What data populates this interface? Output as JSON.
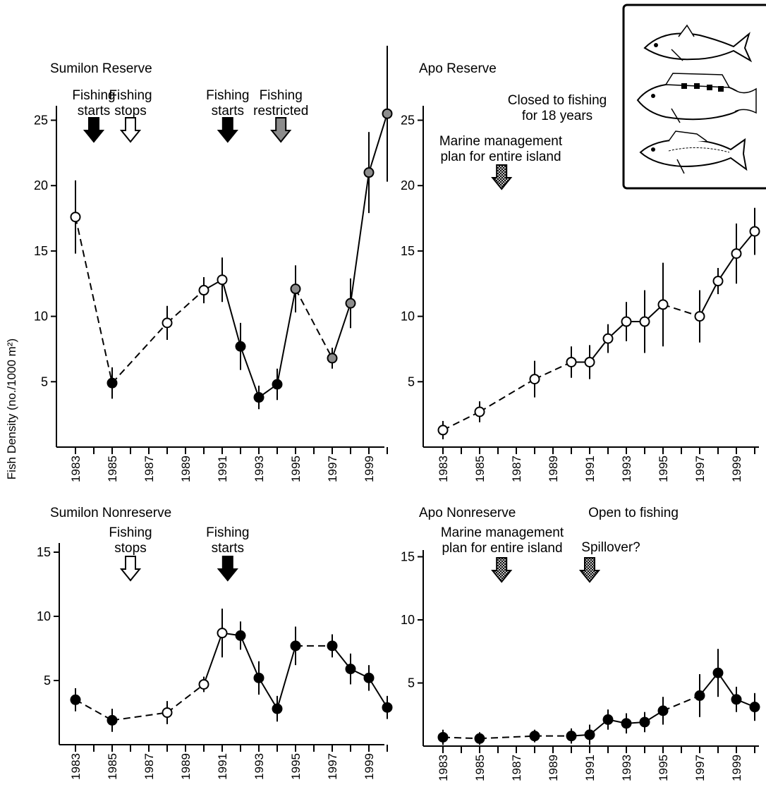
{
  "ylabel": "Fish Density (no./1000 m²)",
  "chart_data": [
    {
      "id": "sumilon_reserve",
      "type": "line",
      "title": "Sumilon Reserve",
      "xlabel": "",
      "ylabel": "Fish Density (no./1000 m²)",
      "xlim": [
        1982.5,
        2000.4
      ],
      "ylim": [
        0,
        25
      ],
      "yticks": [
        5,
        10,
        15,
        20,
        25
      ],
      "xticks": [
        "1983",
        "1985",
        "1987",
        "1989",
        "1991",
        "1993",
        "1995",
        "1997",
        "1999"
      ],
      "points": [
        {
          "year": 1983,
          "value": 17.6,
          "err": 2.8,
          "fill": "open",
          "dashed_to_next": true
        },
        {
          "year": 1985,
          "value": 4.9,
          "err": 1.2,
          "fill": "black",
          "dashed_to_next": true
        },
        {
          "year": 1988,
          "value": 9.5,
          "err": 1.3,
          "fill": "open",
          "dashed_to_next": true
        },
        {
          "year": 1990,
          "value": 12.0,
          "err": 1.0,
          "fill": "open",
          "dashed_to_next": false
        },
        {
          "year": 1991,
          "value": 12.8,
          "err": 1.7,
          "fill": "open",
          "dashed_to_next": false
        },
        {
          "year": 1992,
          "value": 7.7,
          "err": 1.8,
          "fill": "black",
          "dashed_to_next": false
        },
        {
          "year": 1993,
          "value": 3.8,
          "err": 0.9,
          "fill": "black",
          "dashed_to_next": false
        },
        {
          "year": 1994,
          "value": 4.8,
          "err": 1.2,
          "fill": "black",
          "dashed_to_next": false
        },
        {
          "year": 1995,
          "value": 12.1,
          "err": 1.8,
          "fill": "gray",
          "dashed_to_next": true
        },
        {
          "year": 1997,
          "value": 6.8,
          "err": 0.8,
          "fill": "gray",
          "dashed_to_next": false
        },
        {
          "year": 1998,
          "value": 11.0,
          "err": 1.9,
          "fill": "gray",
          "dashed_to_next": false
        },
        {
          "year": 1999,
          "value": 21.0,
          "err": 3.1,
          "fill": "gray",
          "dashed_to_next": false
        },
        {
          "year": 2000,
          "value": 25.5,
          "err": 5.2,
          "fill": "gray",
          "dashed_to_next": false
        }
      ],
      "annotations": [
        {
          "lines": [
            "Fishing",
            "starts"
          ],
          "arrow": "black",
          "year": 1984
        },
        {
          "lines": [
            "Fishing",
            "stops"
          ],
          "arrow": "open",
          "year": 1986
        },
        {
          "lines": [
            "Fishing",
            "starts"
          ],
          "arrow": "black",
          "year": 1991.3
        },
        {
          "lines": [
            "Fishing",
            "restricted"
          ],
          "arrow": "gray",
          "year": 1994.2
        }
      ]
    },
    {
      "id": "apo_reserve",
      "type": "line",
      "title": "Apo Reserve",
      "xlabel": "",
      "ylabel": "Fish Density (no./1000 m²)",
      "xlim": [
        1982.5,
        2000.4
      ],
      "ylim": [
        0,
        25
      ],
      "yticks": [
        5,
        10,
        15,
        20,
        25
      ],
      "xticks": [
        "1983",
        "1985",
        "1987",
        "1989",
        "1991",
        "1993",
        "1995",
        "1997",
        "1999"
      ],
      "points": [
        {
          "year": 1983,
          "value": 1.3,
          "err": 0.7,
          "fill": "open",
          "dashed_to_next": true
        },
        {
          "year": 1985,
          "value": 2.7,
          "err": 0.8,
          "fill": "open",
          "dashed_to_next": true
        },
        {
          "year": 1988,
          "value": 5.2,
          "err": 1.4,
          "fill": "open",
          "dashed_to_next": true
        },
        {
          "year": 1990,
          "value": 6.5,
          "err": 1.2,
          "fill": "open",
          "dashed_to_next": false
        },
        {
          "year": 1991,
          "value": 6.5,
          "err": 1.3,
          "fill": "open",
          "dashed_to_next": false
        },
        {
          "year": 1992,
          "value": 8.3,
          "err": 1.1,
          "fill": "open",
          "dashed_to_next": false
        },
        {
          "year": 1993,
          "value": 9.6,
          "err": 1.5,
          "fill": "open",
          "dashed_to_next": false
        },
        {
          "year": 1994,
          "value": 9.6,
          "err": 2.4,
          "fill": "open",
          "dashed_to_next": false
        },
        {
          "year": 1995,
          "value": 10.9,
          "err": 3.2,
          "fill": "open",
          "dashed_to_next": true
        },
        {
          "year": 1997,
          "value": 10.0,
          "err": 2.0,
          "fill": "open",
          "dashed_to_next": false
        },
        {
          "year": 1998,
          "value": 12.7,
          "err": 1.0,
          "fill": "open",
          "dashed_to_next": false
        },
        {
          "year": 1999,
          "value": 14.8,
          "err": 2.3,
          "fill": "open",
          "dashed_to_next": false
        },
        {
          "year": 2000,
          "value": 16.5,
          "err": 1.8,
          "fill": "open",
          "dashed_to_next": false
        }
      ],
      "annotations": [
        {
          "lines": [
            "Marine management",
            "plan for entire island"
          ],
          "arrow": "hatched",
          "year": 1986.2
        },
        {
          "lines": [
            "Closed to fishing",
            "for 18 years"
          ],
          "arrow": "none",
          "year": null
        }
      ]
    },
    {
      "id": "sumilon_nonreserve",
      "type": "line",
      "title": "Sumilon Nonreserve",
      "xlabel": "",
      "ylabel": "Fish Density (no./1000 m²)",
      "xlim": [
        1982.5,
        2000.4
      ],
      "ylim": [
        0,
        15
      ],
      "yticks": [
        5,
        10,
        15
      ],
      "xticks": [
        "1983",
        "1985",
        "1987",
        "1989",
        "1991",
        "1993",
        "1995",
        "1997",
        "1999"
      ],
      "points": [
        {
          "year": 1983,
          "value": 3.5,
          "err": 0.9,
          "fill": "black",
          "dashed_to_next": true
        },
        {
          "year": 1985,
          "value": 1.9,
          "err": 0.9,
          "fill": "black",
          "dashed_to_next": true
        },
        {
          "year": 1988,
          "value": 2.5,
          "err": 0.9,
          "fill": "open",
          "dashed_to_next": true
        },
        {
          "year": 1990,
          "value": 4.7,
          "err": 0.6,
          "fill": "open",
          "dashed_to_next": false
        },
        {
          "year": 1991,
          "value": 8.7,
          "err": 1.9,
          "fill": "open",
          "dashed_to_next": false
        },
        {
          "year": 1992,
          "value": 8.5,
          "err": 1.1,
          "fill": "black",
          "dashed_to_next": false
        },
        {
          "year": 1993,
          "value": 5.2,
          "err": 1.3,
          "fill": "black",
          "dashed_to_next": false
        },
        {
          "year": 1994,
          "value": 2.8,
          "err": 1.0,
          "fill": "black",
          "dashed_to_next": false
        },
        {
          "year": 1995,
          "value": 7.7,
          "err": 1.5,
          "fill": "black",
          "dashed_to_next": true
        },
        {
          "year": 1997,
          "value": 7.7,
          "err": 0.9,
          "fill": "black",
          "dashed_to_next": false
        },
        {
          "year": 1998,
          "value": 5.9,
          "err": 1.2,
          "fill": "black",
          "dashed_to_next": false
        },
        {
          "year": 1999,
          "value": 5.2,
          "err": 1.0,
          "fill": "black",
          "dashed_to_next": false
        },
        {
          "year": 2000,
          "value": 2.9,
          "err": 0.9,
          "fill": "black",
          "dashed_to_next": false
        }
      ],
      "annotations": [
        {
          "lines": [
            "Fishing",
            "stops"
          ],
          "arrow": "open",
          "year": 1986
        },
        {
          "lines": [
            "Fishing",
            "starts"
          ],
          "arrow": "black",
          "year": 1991.3
        }
      ]
    },
    {
      "id": "apo_nonreserve",
      "type": "line",
      "title": "Apo Nonreserve",
      "xlabel": "",
      "ylabel": "Fish Density (no./1000 m²)",
      "xlim": [
        1982.5,
        2000.4
      ],
      "ylim": [
        0,
        15
      ],
      "yticks": [
        5,
        10,
        15
      ],
      "xticks": [
        "1983",
        "1985",
        "1987",
        "1989",
        "1991",
        "1993",
        "1995",
        "1997",
        "1999"
      ],
      "points": [
        {
          "year": 1983,
          "value": 0.7,
          "err": 0.6,
          "fill": "black",
          "dashed_to_next": true
        },
        {
          "year": 1985,
          "value": 0.6,
          "err": 0.5,
          "fill": "black",
          "dashed_to_next": true
        },
        {
          "year": 1988,
          "value": 0.8,
          "err": 0.5,
          "fill": "black",
          "dashed_to_next": true
        },
        {
          "year": 1990,
          "value": 0.8,
          "err": 0.6,
          "fill": "black",
          "dashed_to_next": false
        },
        {
          "year": 1991,
          "value": 0.9,
          "err": 0.8,
          "fill": "black",
          "dashed_to_next": false
        },
        {
          "year": 1992,
          "value": 2.1,
          "err": 0.8,
          "fill": "black",
          "dashed_to_next": false
        },
        {
          "year": 1993,
          "value": 1.8,
          "err": 0.8,
          "fill": "black",
          "dashed_to_next": false
        },
        {
          "year": 1994,
          "value": 1.9,
          "err": 0.8,
          "fill": "black",
          "dashed_to_next": false
        },
        {
          "year": 1995,
          "value": 2.8,
          "err": 1.1,
          "fill": "black",
          "dashed_to_next": true
        },
        {
          "year": 1997,
          "value": 4.0,
          "err": 1.7,
          "fill": "black",
          "dashed_to_next": false
        },
        {
          "year": 1998,
          "value": 5.8,
          "err": 1.9,
          "fill": "black",
          "dashed_to_next": false
        },
        {
          "year": 1999,
          "value": 3.7,
          "err": 1.0,
          "fill": "black",
          "dashed_to_next": false
        },
        {
          "year": 2000,
          "value": 3.1,
          "err": 1.1,
          "fill": "black",
          "dashed_to_next": false
        }
      ],
      "annotations": [
        {
          "lines": [
            "Marine management",
            "plan for entire island"
          ],
          "arrow": "hatched",
          "year": 1986.2
        },
        {
          "lines": [
            "Open to fishing"
          ],
          "arrow": "none",
          "year": null
        },
        {
          "lines": [
            "Spillover?"
          ],
          "arrow": "hatched",
          "year": 1991
        }
      ]
    }
  ],
  "inset": {
    "icons": [
      "jack-fish-icon",
      "grouper-fish-icon",
      "snapper-fish-icon"
    ]
  },
  "colors": {
    "black": "#000000",
    "gray": "#8c8c8c",
    "open": "#ffffff"
  }
}
